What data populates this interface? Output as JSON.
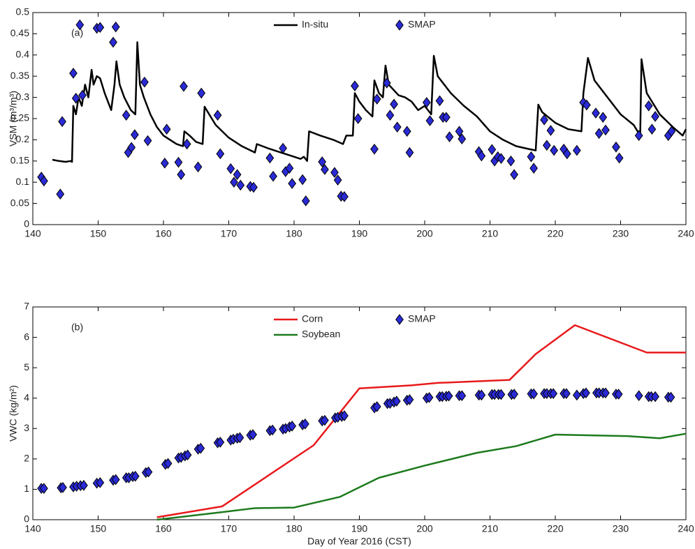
{
  "chart_data": [
    {
      "type": "line",
      "annotation": "(a)",
      "ylabel": "VSM (m³/m³)",
      "xlim": [
        140,
        240
      ],
      "xticks": [
        140,
        150,
        160,
        170,
        180,
        190,
        200,
        210,
        220,
        230,
        240
      ],
      "ylim": [
        0,
        0.5
      ],
      "yticks": [
        0,
        0.05,
        0.1,
        0.15,
        0.2,
        0.25,
        0.3,
        0.35,
        0.4,
        0.45,
        0.5
      ],
      "series": [
        {
          "name": "In-situ",
          "type": "line",
          "color": "#000000",
          "x": [
            143,
            144,
            145,
            145.8,
            146,
            146.2,
            146.6,
            147,
            147.5,
            148,
            148.5,
            149,
            149.3,
            149.8,
            150.3,
            151,
            152,
            152.5,
            152.8,
            153.3,
            154,
            155,
            155.7,
            156,
            156.4,
            157,
            158,
            159,
            160,
            161,
            162,
            163,
            163.2,
            164,
            165,
            166,
            166.3,
            167,
            168,
            170,
            172,
            174,
            174.3,
            176,
            178,
            180,
            181,
            181.5,
            182,
            182.3,
            184,
            186,
            187.5,
            188,
            189,
            189.3,
            190,
            191,
            192,
            192.3,
            193,
            193.6,
            194,
            194.5,
            196,
            197,
            198,
            199,
            200,
            201,
            201.4,
            202,
            204,
            206,
            208,
            210,
            212,
            214,
            216,
            217,
            217.4,
            218,
            220,
            222,
            224,
            224.3,
            225,
            226,
            228,
            230,
            232,
            233,
            233.2,
            234,
            236,
            238,
            239.5,
            240
          ],
          "values": [
            0.153,
            0.15,
            0.148,
            0.15,
            0.148,
            0.28,
            0.26,
            0.3,
            0.28,
            0.33,
            0.3,
            0.365,
            0.33,
            0.35,
            0.345,
            0.31,
            0.27,
            0.33,
            0.385,
            0.33,
            0.3,
            0.27,
            0.26,
            0.43,
            0.33,
            0.3,
            0.26,
            0.23,
            0.21,
            0.2,
            0.19,
            0.185,
            0.22,
            0.21,
            0.195,
            0.19,
            0.278,
            0.26,
            0.235,
            0.205,
            0.185,
            0.17,
            0.19,
            0.18,
            0.17,
            0.16,
            0.155,
            0.16,
            0.15,
            0.22,
            0.21,
            0.2,
            0.19,
            0.21,
            0.21,
            0.31,
            0.29,
            0.27,
            0.255,
            0.34,
            0.31,
            0.3,
            0.375,
            0.33,
            0.305,
            0.3,
            0.29,
            0.27,
            0.28,
            0.26,
            0.398,
            0.35,
            0.31,
            0.28,
            0.255,
            0.22,
            0.2,
            0.185,
            0.178,
            0.175,
            0.283,
            0.265,
            0.24,
            0.225,
            0.22,
            0.31,
            0.393,
            0.34,
            0.3,
            0.26,
            0.235,
            0.21,
            0.39,
            0.31,
            0.26,
            0.23,
            0.21,
            0.225
          ]
        },
        {
          "name": "SMAP",
          "type": "scatter",
          "color": "#2a2ad6",
          "x": [
            141.3,
            141.7,
            144.2,
            144.5,
            146.2,
            146.6,
            147.2,
            147.6,
            149.8,
            150.3,
            152.3,
            152.7,
            154.3,
            154.6,
            155.1,
            155.6,
            157.1,
            157.6,
            160.2,
            160.5,
            162.3,
            162.7,
            163.1,
            163.6,
            165.3,
            165.8,
            168.3,
            168.7,
            170.3,
            170.8,
            171.3,
            171.8,
            173.3,
            173.8,
            176.3,
            176.8,
            178.3,
            178.7,
            179.3,
            179.7,
            181.3,
            181.8,
            184.3,
            184.7,
            186.2,
            186.7,
            187.2,
            187.7,
            189.3,
            189.8,
            192.3,
            192.7,
            194.2,
            194.7,
            195.3,
            195.8,
            197.3,
            197.7,
            200.3,
            200.8,
            202.3,
            202.8,
            203.3,
            203.8,
            205.3,
            205.7,
            208.3,
            208.7,
            210.3,
            210.7,
            211.2,
            211.7,
            213.2,
            213.7,
            216.3,
            216.7,
            218.3,
            218.7,
            219.3,
            219.8,
            221.3,
            221.8,
            223.3,
            224.3,
            224.8,
            226.2,
            226.7,
            227.3,
            227.7,
            229.3,
            229.8,
            232.8,
            234.3,
            234.8,
            235.3,
            237.3,
            237.8
          ],
          "values": [
            0.112,
            0.103,
            0.072,
            0.243,
            0.357,
            0.298,
            0.471,
            0.305,
            0.463,
            0.465,
            0.43,
            0.466,
            0.258,
            0.17,
            0.182,
            0.212,
            0.336,
            0.198,
            0.145,
            0.225,
            0.147,
            0.118,
            0.326,
            0.19,
            0.136,
            0.31,
            0.258,
            0.167,
            0.132,
            0.1,
            0.118,
            0.093,
            0.09,
            0.088,
            0.157,
            0.114,
            0.18,
            0.125,
            0.133,
            0.097,
            0.106,
            0.056,
            0.148,
            0.13,
            0.123,
            0.105,
            0.067,
            0.066,
            0.327,
            0.25,
            0.178,
            0.296,
            0.334,
            0.258,
            0.284,
            0.23,
            0.22,
            0.17,
            0.288,
            0.245,
            0.292,
            0.253,
            0.253,
            0.207,
            0.22,
            0.202,
            0.172,
            0.162,
            0.177,
            0.15,
            0.16,
            0.156,
            0.15,
            0.118,
            0.16,
            0.133,
            0.247,
            0.187,
            0.222,
            0.175,
            0.178,
            0.167,
            0.175,
            0.288,
            0.282,
            0.263,
            0.215,
            0.253,
            0.223,
            0.183,
            0.157,
            0.21,
            0.28,
            0.225,
            0.255,
            0.21,
            0.22
          ]
        }
      ]
    },
    {
      "type": "line",
      "annotation": "(b)",
      "ylabel": "VWC (kg/m²)",
      "xlabel": "Day of Year 2016 (CST)",
      "xlim": [
        140,
        240
      ],
      "xticks": [
        140,
        150,
        160,
        170,
        180,
        190,
        200,
        210,
        220,
        230,
        240
      ],
      "ylim": [
        0,
        7
      ],
      "yticks": [
        0,
        1,
        2,
        3,
        4,
        5,
        6,
        7
      ],
      "series": [
        {
          "name": "Corn",
          "type": "line",
          "color": "#e8191b",
          "x": [
            159,
            169,
            183,
            190,
            198,
            202,
            213,
            217,
            223,
            234,
            240
          ],
          "values": [
            0.08,
            0.44,
            2.45,
            4.32,
            4.42,
            4.5,
            4.6,
            5.45,
            6.4,
            5.5,
            5.5
          ]
        },
        {
          "name": "SMAP",
          "type": "scatter",
          "color": "#2a2ad6",
          "x": [
            141.3,
            141.7,
            144.3,
            144.6,
            146.2,
            146.7,
            147.3,
            147.8,
            149.8,
            150.3,
            152.3,
            152.7,
            154.3,
            154.7,
            155.3,
            155.7,
            157.3,
            157.7,
            160.3,
            160.7,
            162.3,
            162.7,
            163.3,
            163.7,
            165.3,
            165.7,
            168.3,
            168.7,
            170.3,
            170.7,
            171.3,
            171.7,
            173.3,
            173.7,
            176.3,
            176.7,
            178.3,
            178.7,
            179.3,
            179.7,
            181.3,
            181.7,
            184.3,
            184.7,
            186.3,
            186.7,
            187.3,
            187.7,
            192.3,
            192.7,
            194.3,
            194.7,
            195.3,
            195.7,
            197.3,
            197.7,
            200.3,
            200.7,
            202.3,
            202.7,
            203.3,
            203.7,
            205.3,
            205.7,
            208.3,
            208.7,
            210.3,
            210.7,
            211.3,
            211.7,
            213.3,
            213.7,
            216.3,
            216.7,
            218.3,
            218.7,
            219.3,
            219.7,
            221.3,
            221.7,
            223.3,
            224.3,
            224.7,
            226.3,
            226.7,
            227.3,
            227.7,
            229.3,
            229.7,
            232.8,
            234.3,
            234.7,
            235.3,
            237.3,
            237.7
          ],
          "values": [
            1.03,
            1.03,
            1.05,
            1.06,
            1.08,
            1.1,
            1.12,
            1.13,
            1.2,
            1.22,
            1.3,
            1.32,
            1.38,
            1.38,
            1.42,
            1.43,
            1.55,
            1.57,
            1.82,
            1.85,
            2.03,
            2.05,
            2.1,
            2.13,
            2.32,
            2.35,
            2.53,
            2.55,
            2.62,
            2.65,
            2.68,
            2.7,
            2.78,
            2.8,
            2.93,
            2.95,
            2.98,
            3.0,
            3.05,
            3.08,
            3.12,
            3.15,
            3.25,
            3.27,
            3.35,
            3.37,
            3.4,
            3.42,
            3.68,
            3.72,
            3.82,
            3.83,
            3.87,
            3.9,
            3.93,
            3.95,
            4.0,
            4.02,
            4.05,
            4.05,
            4.06,
            4.07,
            4.08,
            4.08,
            4.1,
            4.1,
            4.12,
            4.12,
            4.12,
            4.12,
            4.12,
            4.13,
            4.14,
            4.14,
            4.15,
            4.15,
            4.15,
            4.15,
            4.15,
            4.15,
            4.1,
            4.15,
            4.17,
            4.17,
            4.17,
            4.17,
            4.17,
            4.13,
            4.13,
            4.08,
            4.05,
            4.05,
            4.05,
            4.03,
            4.03
          ]
        },
        {
          "name": "Soybean",
          "type": "line",
          "color": "#1c7a1c",
          "x": [
            159,
            169,
            174,
            180,
            187,
            193,
            200,
            208,
            214,
            220,
            231,
            236,
            240
          ],
          "values": [
            0.0,
            0.25,
            0.38,
            0.4,
            0.75,
            1.38,
            1.78,
            2.2,
            2.42,
            2.8,
            2.75,
            2.68,
            2.83
          ]
        }
      ]
    }
  ]
}
